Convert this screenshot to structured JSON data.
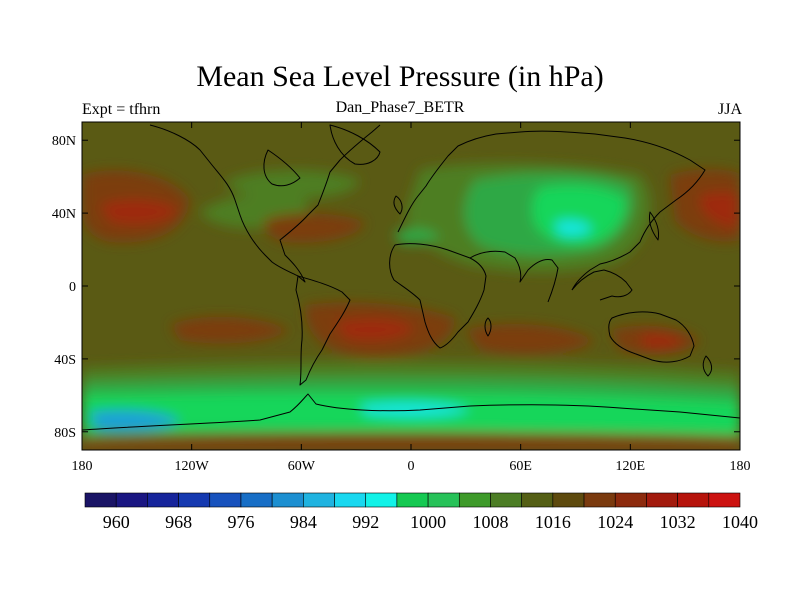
{
  "title": "Mean Sea Level Pressure (in hPa)",
  "experiment": "Expt = tfhrn",
  "subtitle": "Dan_Phase7_BETR",
  "season": "JJA",
  "map": {
    "lon_ticks": [
      {
        "lon": -180,
        "label": "180"
      },
      {
        "lon": -120,
        "label": "120W"
      },
      {
        "lon": -60,
        "label": "60W"
      },
      {
        "lon": 0,
        "label": "0"
      },
      {
        "lon": 60,
        "label": "60E"
      },
      {
        "lon": 120,
        "label": "120E"
      },
      {
        "lon": 180,
        "label": "180"
      }
    ],
    "lat_ticks": [
      {
        "lat": 80,
        "label": "80N"
      },
      {
        "lat": 40,
        "label": "40N"
      },
      {
        "lat": 0,
        "label": "0"
      },
      {
        "lat": -40,
        "label": "40S"
      },
      {
        "lat": -80,
        "label": "80S"
      }
    ],
    "lon_range": [
      -180,
      180
    ],
    "lat_range": [
      -90,
      90
    ]
  },
  "colorbar": {
    "colors": [
      "#1a1466",
      "#1a1682",
      "#16249b",
      "#1539b0",
      "#1752bd",
      "#176ec6",
      "#1c8fd1",
      "#1fb3e0",
      "#19d8f0",
      "#12f2e8",
      "#15c952",
      "#27c259",
      "#3e9a2a",
      "#4c7d25",
      "#545f15",
      "#5e4a0e",
      "#7a3a0e",
      "#8c2a0d",
      "#a21a0d",
      "#b6130b",
      "#cc1210"
    ],
    "labels": [
      {
        "index": 1,
        "label": "960"
      },
      {
        "index": 3,
        "label": "968"
      },
      {
        "index": 5,
        "label": "976"
      },
      {
        "index": 7,
        "label": "984"
      },
      {
        "index": 9,
        "label": "992"
      },
      {
        "index": 11,
        "label": "1000"
      },
      {
        "index": 13,
        "label": "1008"
      },
      {
        "index": 15,
        "label": "1016"
      },
      {
        "index": 17,
        "label": "1024"
      },
      {
        "index": 19,
        "label": "1032"
      },
      {
        "index": 21,
        "label": "1040"
      }
    ]
  },
  "field_colors": {
    "background": "#5a5a14",
    "high_1024": "#7c3e0c",
    "high_1032": "#9e2a0c",
    "low_1016": "#4d7e20",
    "low_1008": "#2ea845",
    "low_1000": "#16d65a",
    "low_992": "#17e6e0",
    "low_984": "#1fa0d8"
  }
}
